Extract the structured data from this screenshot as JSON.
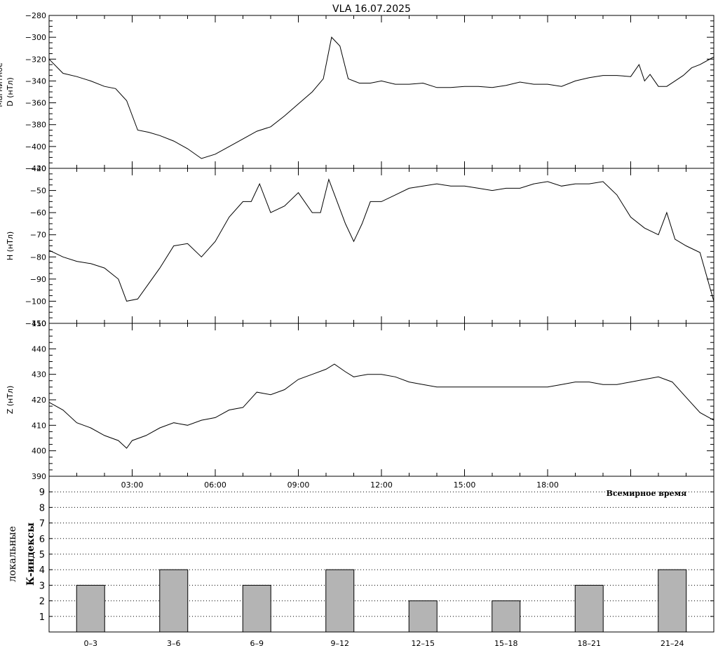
{
  "title": "VLA   16.07.2025",
  "chart_data": [
    {
      "type": "line",
      "id": "d",
      "ylabel": "D (нТл)",
      "ylabel_extra": "Магнитное",
      "ylim": [
        -420,
        -280
      ],
      "ytick_step": 20,
      "xlim": [
        0,
        24
      ],
      "series": [
        {
          "x": [
            0,
            0.5,
            1,
            1.5,
            2,
            2.4,
            2.8,
            3.2,
            3.6,
            4,
            4.5,
            5,
            5.5,
            6,
            6.5,
            7,
            7.5,
            8,
            8.5,
            9,
            9.5,
            9.9,
            10.2,
            10.5,
            10.8,
            11.2,
            11.6,
            12,
            12.5,
            13,
            13.5,
            14,
            14.5,
            15,
            15.5,
            16,
            16.5,
            17,
            17.5,
            18,
            18.5,
            19,
            19.5,
            20,
            20.5,
            21,
            21.3,
            21.5,
            21.7,
            22,
            22.3,
            22.6,
            22.9,
            23.2,
            23.5,
            24
          ],
          "y": [
            -320,
            -333,
            -336,
            -340,
            -345,
            -347,
            -358,
            -385,
            -387,
            -390,
            -395,
            -402,
            -411,
            -407,
            -400,
            -393,
            -386,
            -382,
            -372,
            -361,
            -350,
            -338,
            -300,
            -308,
            -338,
            -342,
            -342,
            -340,
            -343,
            -343,
            -342,
            -346,
            -346,
            -345,
            -345,
            -346,
            -344,
            -341,
            -343,
            -343,
            -345,
            -340,
            -337,
            -335,
            -335,
            -336,
            -325,
            -340,
            -334,
            -345,
            -345,
            -340,
            -335,
            -328,
            -325,
            -318
          ]
        }
      ]
    },
    {
      "type": "line",
      "id": "h",
      "ylabel": "H (нТл)",
      "ylim": [
        -110,
        -40
      ],
      "ytick_step": 10,
      "xlim": [
        0,
        24
      ],
      "series": [
        {
          "x": [
            0,
            0.5,
            1,
            1.5,
            2,
            2.5,
            2.8,
            3.2,
            3.6,
            4,
            4.5,
            5,
            5.5,
            6,
            6.5,
            7,
            7.3,
            7.6,
            8,
            8.5,
            9,
            9.5,
            9.8,
            10.1,
            10.4,
            10.7,
            11,
            11.3,
            11.6,
            12,
            12.5,
            13,
            13.5,
            14,
            14.5,
            15,
            15.5,
            16,
            16.5,
            17,
            17.5,
            18,
            18.5,
            19,
            19.5,
            20,
            20.5,
            21,
            21.5,
            22,
            22.3,
            22.6,
            23,
            23.5,
            24
          ],
          "y": [
            -77,
            -80,
            -82,
            -83,
            -85,
            -90,
            -100,
            -99,
            -92,
            -85,
            -75,
            -74,
            -80,
            -73,
            -62,
            -55,
            -55,
            -47,
            -60,
            -57,
            -51,
            -60,
            -60,
            -45,
            -55,
            -65,
            -73,
            -65,
            -55,
            -55,
            -52,
            -49,
            -48,
            -47,
            -48,
            -48,
            -49,
            -50,
            -49,
            -49,
            -47,
            -46,
            -48,
            -47,
            -47,
            -46,
            -52,
            -62,
            -67,
            -70,
            -60,
            -72,
            -75,
            -78,
            -100
          ]
        }
      ]
    },
    {
      "type": "line",
      "id": "z",
      "ylabel": "Z (нТл)",
      "ylim": [
        390,
        450
      ],
      "ytick_step": 10,
      "xlim": [
        0,
        24
      ],
      "xticks": [
        "03:00",
        "06:00",
        "09:00",
        "12:00",
        "15:00",
        "18:00"
      ],
      "xtick_values": [
        3,
        6,
        9,
        12,
        15,
        18
      ],
      "xlabel": "Всемирное время",
      "series": [
        {
          "x": [
            0,
            0.5,
            1,
            1.5,
            2,
            2.5,
            2.8,
            3,
            3.5,
            4,
            4.5,
            5,
            5.5,
            6,
            6.5,
            7,
            7.5,
            8,
            8.5,
            9,
            9.5,
            10,
            10.3,
            10.7,
            11,
            11.5,
            12,
            12.5,
            13,
            13.5,
            14,
            14.5,
            15,
            15.5,
            16,
            16.5,
            17,
            17.5,
            18,
            18.5,
            19,
            19.5,
            20,
            20.5,
            21,
            21.5,
            22,
            22.5,
            23,
            23.5,
            24
          ],
          "y": [
            419,
            416,
            411,
            409,
            406,
            404,
            401,
            404,
            406,
            409,
            411,
            410,
            412,
            413,
            416,
            417,
            423,
            422,
            424,
            428,
            430,
            432,
            434,
            431,
            429,
            430,
            430,
            429,
            427,
            426,
            425,
            425,
            425,
            425,
            425,
            425,
            425,
            425,
            425,
            426,
            427,
            427,
            426,
            426,
            427,
            428,
            429,
            427,
            421,
            415,
            412
          ]
        }
      ]
    },
    {
      "type": "bar",
      "id": "k",
      "ylabel": "К-индексы",
      "ylabel_extra": "локальные",
      "ylim": [
        0,
        10
      ],
      "yticks": [
        1,
        2,
        3,
        4,
        5,
        6,
        7,
        8,
        9
      ],
      "categories": [
        "0–3",
        "3–6",
        "6–9",
        "9–12",
        "12–15",
        "15–18",
        "18–21",
        "21–24"
      ],
      "values": [
        3,
        4,
        3,
        4,
        2,
        2,
        3,
        4
      ],
      "grid": "dotted",
      "bar_color": "#b4b4b4"
    }
  ]
}
